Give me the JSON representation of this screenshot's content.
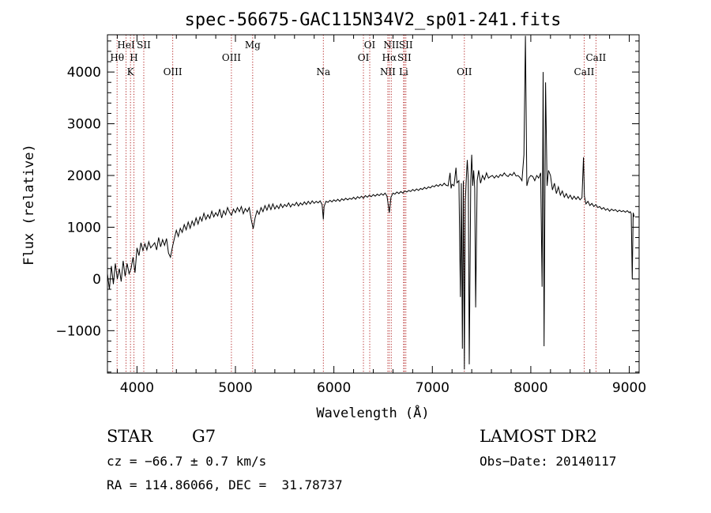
{
  "chart_data": {
    "type": "line",
    "title": "spec-56675-GAC115N34V2_sp01-241.fits",
    "xlabel": "Wavelength (Å)",
    "ylabel": "Flux (relative)",
    "xlim": [
      3700,
      9100
    ],
    "ylim": [
      -1820,
      4720
    ],
    "xticks": [
      4000,
      5000,
      6000,
      7000,
      8000,
      9000
    ],
    "yticks": [
      -1000,
      0,
      1000,
      2000,
      3000,
      4000
    ],
    "xtick_labels": [
      "4000",
      "5000",
      "6000",
      "7000",
      "8000",
      "9000"
    ],
    "ytick_labels": [
      "−1000",
      "0",
      "1000",
      "2000",
      "3000",
      "4000"
    ],
    "line_color": "#000000",
    "marker_color": "#b22222",
    "spectral_lines": [
      {
        "label": "Hθ",
        "x": 3798,
        "row": 2
      },
      {
        "label": "HeI",
        "x": 3889,
        "row": 1
      },
      {
        "label": "K",
        "x": 3934,
        "row": 3
      },
      {
        "label": "H",
        "x": 3969,
        "row": 2
      },
      {
        "label": "SII",
        "x": 4069,
        "row": 1
      },
      {
        "label": "OIII",
        "x": 4363,
        "row": 3
      },
      {
        "label": "OIII",
        "x": 4959,
        "row": 2
      },
      {
        "label": "Mg",
        "x": 5175,
        "row": 1
      },
      {
        "label": "Na",
        "x": 5893,
        "row": 3
      },
      {
        "label": "OI",
        "x": 6300,
        "row": 2
      },
      {
        "label": "OI",
        "x": 6364,
        "row": 1
      },
      {
        "label": "NII",
        "x": 6548,
        "row": 3
      },
      {
        "label": "NII",
        "x": 6583,
        "row": 1
      },
      {
        "label": "Hα",
        "x": 6563,
        "row": 2
      },
      {
        "label": "SII",
        "x": 6716,
        "row": 2
      },
      {
        "label": "SII",
        "x": 6731,
        "row": 1
      },
      {
        "label": "Li",
        "x": 6708,
        "row": 3
      },
      {
        "label": "OII",
        "x": 7325,
        "row": 3
      },
      {
        "label": "CaII",
        "x": 8542,
        "row": 3
      },
      {
        "label": "CaII",
        "x": 8662,
        "row": 2
      }
    ],
    "series": [
      {
        "points": [
          [
            3700,
            100
          ],
          [
            3720,
            -200
          ],
          [
            3740,
            250
          ],
          [
            3760,
            -100
          ],
          [
            3780,
            300
          ],
          [
            3800,
            0
          ],
          [
            3820,
            200
          ],
          [
            3840,
            -50
          ],
          [
            3860,
            350
          ],
          [
            3880,
            50
          ],
          [
            3900,
            300
          ],
          [
            3920,
            100
          ],
          [
            3940,
            200
          ],
          [
            3960,
            420
          ],
          [
            3980,
            120
          ],
          [
            4000,
            600
          ],
          [
            4020,
            450
          ],
          [
            4040,
            700
          ],
          [
            4060,
            550
          ],
          [
            4080,
            680
          ],
          [
            4100,
            560
          ],
          [
            4120,
            720
          ],
          [
            4140,
            600
          ],
          [
            4160,
            650
          ],
          [
            4180,
            700
          ],
          [
            4200,
            560
          ],
          [
            4220,
            800
          ],
          [
            4240,
            620
          ],
          [
            4260,
            760
          ],
          [
            4280,
            650
          ],
          [
            4300,
            780
          ],
          [
            4320,
            500
          ],
          [
            4340,
            420
          ],
          [
            4360,
            620
          ],
          [
            4380,
            780
          ],
          [
            4400,
            940
          ],
          [
            4420,
            820
          ],
          [
            4440,
            980
          ],
          [
            4460,
            900
          ],
          [
            4480,
            1050
          ],
          [
            4500,
            950
          ],
          [
            4520,
            1100
          ],
          [
            4540,
            980
          ],
          [
            4560,
            1120
          ],
          [
            4580,
            1030
          ],
          [
            4600,
            1180
          ],
          [
            4620,
            1060
          ],
          [
            4640,
            1200
          ],
          [
            4660,
            1120
          ],
          [
            4680,
            1270
          ],
          [
            4700,
            1150
          ],
          [
            4720,
            1240
          ],
          [
            4740,
            1170
          ],
          [
            4760,
            1310
          ],
          [
            4780,
            1200
          ],
          [
            4800,
            1280
          ],
          [
            4820,
            1220
          ],
          [
            4840,
            1350
          ],
          [
            4860,
            1180
          ],
          [
            4880,
            1320
          ],
          [
            4900,
            1240
          ],
          [
            4920,
            1380
          ],
          [
            4940,
            1290
          ],
          [
            4960,
            1230
          ],
          [
            4980,
            1350
          ],
          [
            5000,
            1280
          ],
          [
            5020,
            1380
          ],
          [
            5040,
            1300
          ],
          [
            5060,
            1400
          ],
          [
            5080,
            1260
          ],
          [
            5100,
            1360
          ],
          [
            5120,
            1300
          ],
          [
            5140,
            1380
          ],
          [
            5160,
            1150
          ],
          [
            5180,
            970
          ],
          [
            5200,
            1180
          ],
          [
            5220,
            1320
          ],
          [
            5240,
            1250
          ],
          [
            5260,
            1380
          ],
          [
            5280,
            1300
          ],
          [
            5300,
            1420
          ],
          [
            5320,
            1330
          ],
          [
            5340,
            1440
          ],
          [
            5360,
            1340
          ],
          [
            5380,
            1450
          ],
          [
            5400,
            1350
          ],
          [
            5420,
            1420
          ],
          [
            5440,
            1360
          ],
          [
            5460,
            1450
          ],
          [
            5480,
            1380
          ],
          [
            5500,
            1440
          ],
          [
            5520,
            1400
          ],
          [
            5540,
            1470
          ],
          [
            5560,
            1390
          ],
          [
            5580,
            1450
          ],
          [
            5600,
            1420
          ],
          [
            5620,
            1480
          ],
          [
            5640,
            1410
          ],
          [
            5660,
            1470
          ],
          [
            5680,
            1430
          ],
          [
            5700,
            1490
          ],
          [
            5720,
            1440
          ],
          [
            5740,
            1500
          ],
          [
            5760,
            1450
          ],
          [
            5780,
            1510
          ],
          [
            5800,
            1460
          ],
          [
            5820,
            1500
          ],
          [
            5840,
            1470
          ],
          [
            5860,
            1510
          ],
          [
            5880,
            1440
          ],
          [
            5893,
            1150
          ],
          [
            5900,
            1400
          ],
          [
            5920,
            1500
          ],
          [
            5940,
            1480
          ],
          [
            5960,
            1520
          ],
          [
            5980,
            1490
          ],
          [
            6000,
            1530
          ],
          [
            6020,
            1500
          ],
          [
            6040,
            1540
          ],
          [
            6060,
            1500
          ],
          [
            6080,
            1550
          ],
          [
            6100,
            1520
          ],
          [
            6120,
            1560
          ],
          [
            6140,
            1530
          ],
          [
            6160,
            1560
          ],
          [
            6180,
            1540
          ],
          [
            6200,
            1580
          ],
          [
            6220,
            1540
          ],
          [
            6240,
            1590
          ],
          [
            6260,
            1560
          ],
          [
            6280,
            1600
          ],
          [
            6300,
            1560
          ],
          [
            6320,
            1610
          ],
          [
            6340,
            1580
          ],
          [
            6360,
            1620
          ],
          [
            6380,
            1590
          ],
          [
            6400,
            1630
          ],
          [
            6420,
            1600
          ],
          [
            6440,
            1640
          ],
          [
            6460,
            1610
          ],
          [
            6480,
            1650
          ],
          [
            6500,
            1620
          ],
          [
            6520,
            1660
          ],
          [
            6540,
            1600
          ],
          [
            6563,
            1280
          ],
          [
            6580,
            1580
          ],
          [
            6600,
            1660
          ],
          [
            6620,
            1640
          ],
          [
            6640,
            1680
          ],
          [
            6660,
            1650
          ],
          [
            6680,
            1690
          ],
          [
            6700,
            1660
          ],
          [
            6720,
            1700
          ],
          [
            6740,
            1680
          ],
          [
            6760,
            1710
          ],
          [
            6780,
            1690
          ],
          [
            6800,
            1730
          ],
          [
            6820,
            1700
          ],
          [
            6840,
            1740
          ],
          [
            6860,
            1710
          ],
          [
            6880,
            1750
          ],
          [
            6900,
            1730
          ],
          [
            6920,
            1770
          ],
          [
            6940,
            1740
          ],
          [
            6960,
            1780
          ],
          [
            6980,
            1760
          ],
          [
            7000,
            1800
          ],
          [
            7020,
            1780
          ],
          [
            7040,
            1820
          ],
          [
            7060,
            1790
          ],
          [
            7080,
            1830
          ],
          [
            7100,
            1800
          ],
          [
            7120,
            1850
          ],
          [
            7140,
            1810
          ],
          [
            7160,
            1800
          ],
          [
            7180,
            2050
          ],
          [
            7190,
            1750
          ],
          [
            7200,
            1830
          ],
          [
            7220,
            1800
          ],
          [
            7240,
            2150
          ],
          [
            7250,
            1860
          ],
          [
            7270,
            1900
          ],
          [
            7285,
            -350
          ],
          [
            7295,
            1850
          ],
          [
            7305,
            -1350
          ],
          [
            7315,
            1900
          ],
          [
            7325,
            -1750
          ],
          [
            7335,
            1500
          ],
          [
            7345,
            1950
          ],
          [
            7355,
            2300
          ],
          [
            7365,
            1900
          ],
          [
            7375,
            -1650
          ],
          [
            7390,
            1900
          ],
          [
            7400,
            2400
          ],
          [
            7410,
            1800
          ],
          [
            7420,
            2100
          ],
          [
            7430,
            1750
          ],
          [
            7440,
            -550
          ],
          [
            7455,
            1900
          ],
          [
            7470,
            2100
          ],
          [
            7490,
            1850
          ],
          [
            7510,
            2000
          ],
          [
            7530,
            1920
          ],
          [
            7550,
            2050
          ],
          [
            7570,
            1950
          ],
          [
            7590,
            1980
          ],
          [
            7610,
            2000
          ],
          [
            7630,
            1950
          ],
          [
            7650,
            2000
          ],
          [
            7670,
            1960
          ],
          [
            7690,
            2020
          ],
          [
            7710,
            1990
          ],
          [
            7730,
            2050
          ],
          [
            7750,
            2000
          ],
          [
            7770,
            1980
          ],
          [
            7790,
            2030
          ],
          [
            7810,
            2000
          ],
          [
            7830,
            2060
          ],
          [
            7850,
            1990
          ],
          [
            7870,
            2000
          ],
          [
            7890,
            1960
          ],
          [
            7910,
            1900
          ],
          [
            7930,
            2400
          ],
          [
            7945,
            4700
          ],
          [
            7960,
            1800
          ],
          [
            7980,
            1950
          ],
          [
            8000,
            2000
          ],
          [
            8020,
            1980
          ],
          [
            8040,
            1900
          ],
          [
            8060,
            2000
          ],
          [
            8080,
            1950
          ],
          [
            8100,
            2050
          ],
          [
            8115,
            -150
          ],
          [
            8125,
            4000
          ],
          [
            8135,
            -1300
          ],
          [
            8150,
            3800
          ],
          [
            8165,
            1800
          ],
          [
            8180,
            2100
          ],
          [
            8200,
            2000
          ],
          [
            8220,
            1720
          ],
          [
            8240,
            1850
          ],
          [
            8260,
            1650
          ],
          [
            8280,
            1780
          ],
          [
            8300,
            1620
          ],
          [
            8320,
            1700
          ],
          [
            8340,
            1580
          ],
          [
            8360,
            1650
          ],
          [
            8380,
            1560
          ],
          [
            8400,
            1620
          ],
          [
            8420,
            1540
          ],
          [
            8440,
            1600
          ],
          [
            8460,
            1540
          ],
          [
            8480,
            1590
          ],
          [
            8500,
            1530
          ],
          [
            8520,
            1570
          ],
          [
            8535,
            2350
          ],
          [
            8545,
            1600
          ],
          [
            8560,
            1450
          ],
          [
            8580,
            1500
          ],
          [
            8600,
            1420
          ],
          [
            8620,
            1460
          ],
          [
            8640,
            1400
          ],
          [
            8660,
            1440
          ],
          [
            8680,
            1380
          ],
          [
            8700,
            1400
          ],
          [
            8720,
            1350
          ],
          [
            8740,
            1380
          ],
          [
            8760,
            1330
          ],
          [
            8780,
            1360
          ],
          [
            8800,
            1310
          ],
          [
            8820,
            1350
          ],
          [
            8840,
            1320
          ],
          [
            8860,
            1340
          ],
          [
            8880,
            1300
          ],
          [
            8900,
            1330
          ],
          [
            8920,
            1300
          ],
          [
            8940,
            1320
          ],
          [
            8960,
            1290
          ],
          [
            8980,
            1320
          ],
          [
            9000,
            1280
          ],
          [
            9010,
            1300
          ],
          [
            9020,
            1260
          ],
          [
            9030,
            0
          ],
          [
            9040,
            1280
          ],
          [
            9050,
            1200
          ]
        ]
      }
    ]
  },
  "info": {
    "object_class": "STAR",
    "subclass": "G7",
    "cz": "cz = −66.7 ± 0.7 km/s",
    "radec": "RA = 114.86066, DEC =  31.78737",
    "survey": "LAMOST DR2",
    "obs_date": "Obs−Date: 20140117"
  }
}
